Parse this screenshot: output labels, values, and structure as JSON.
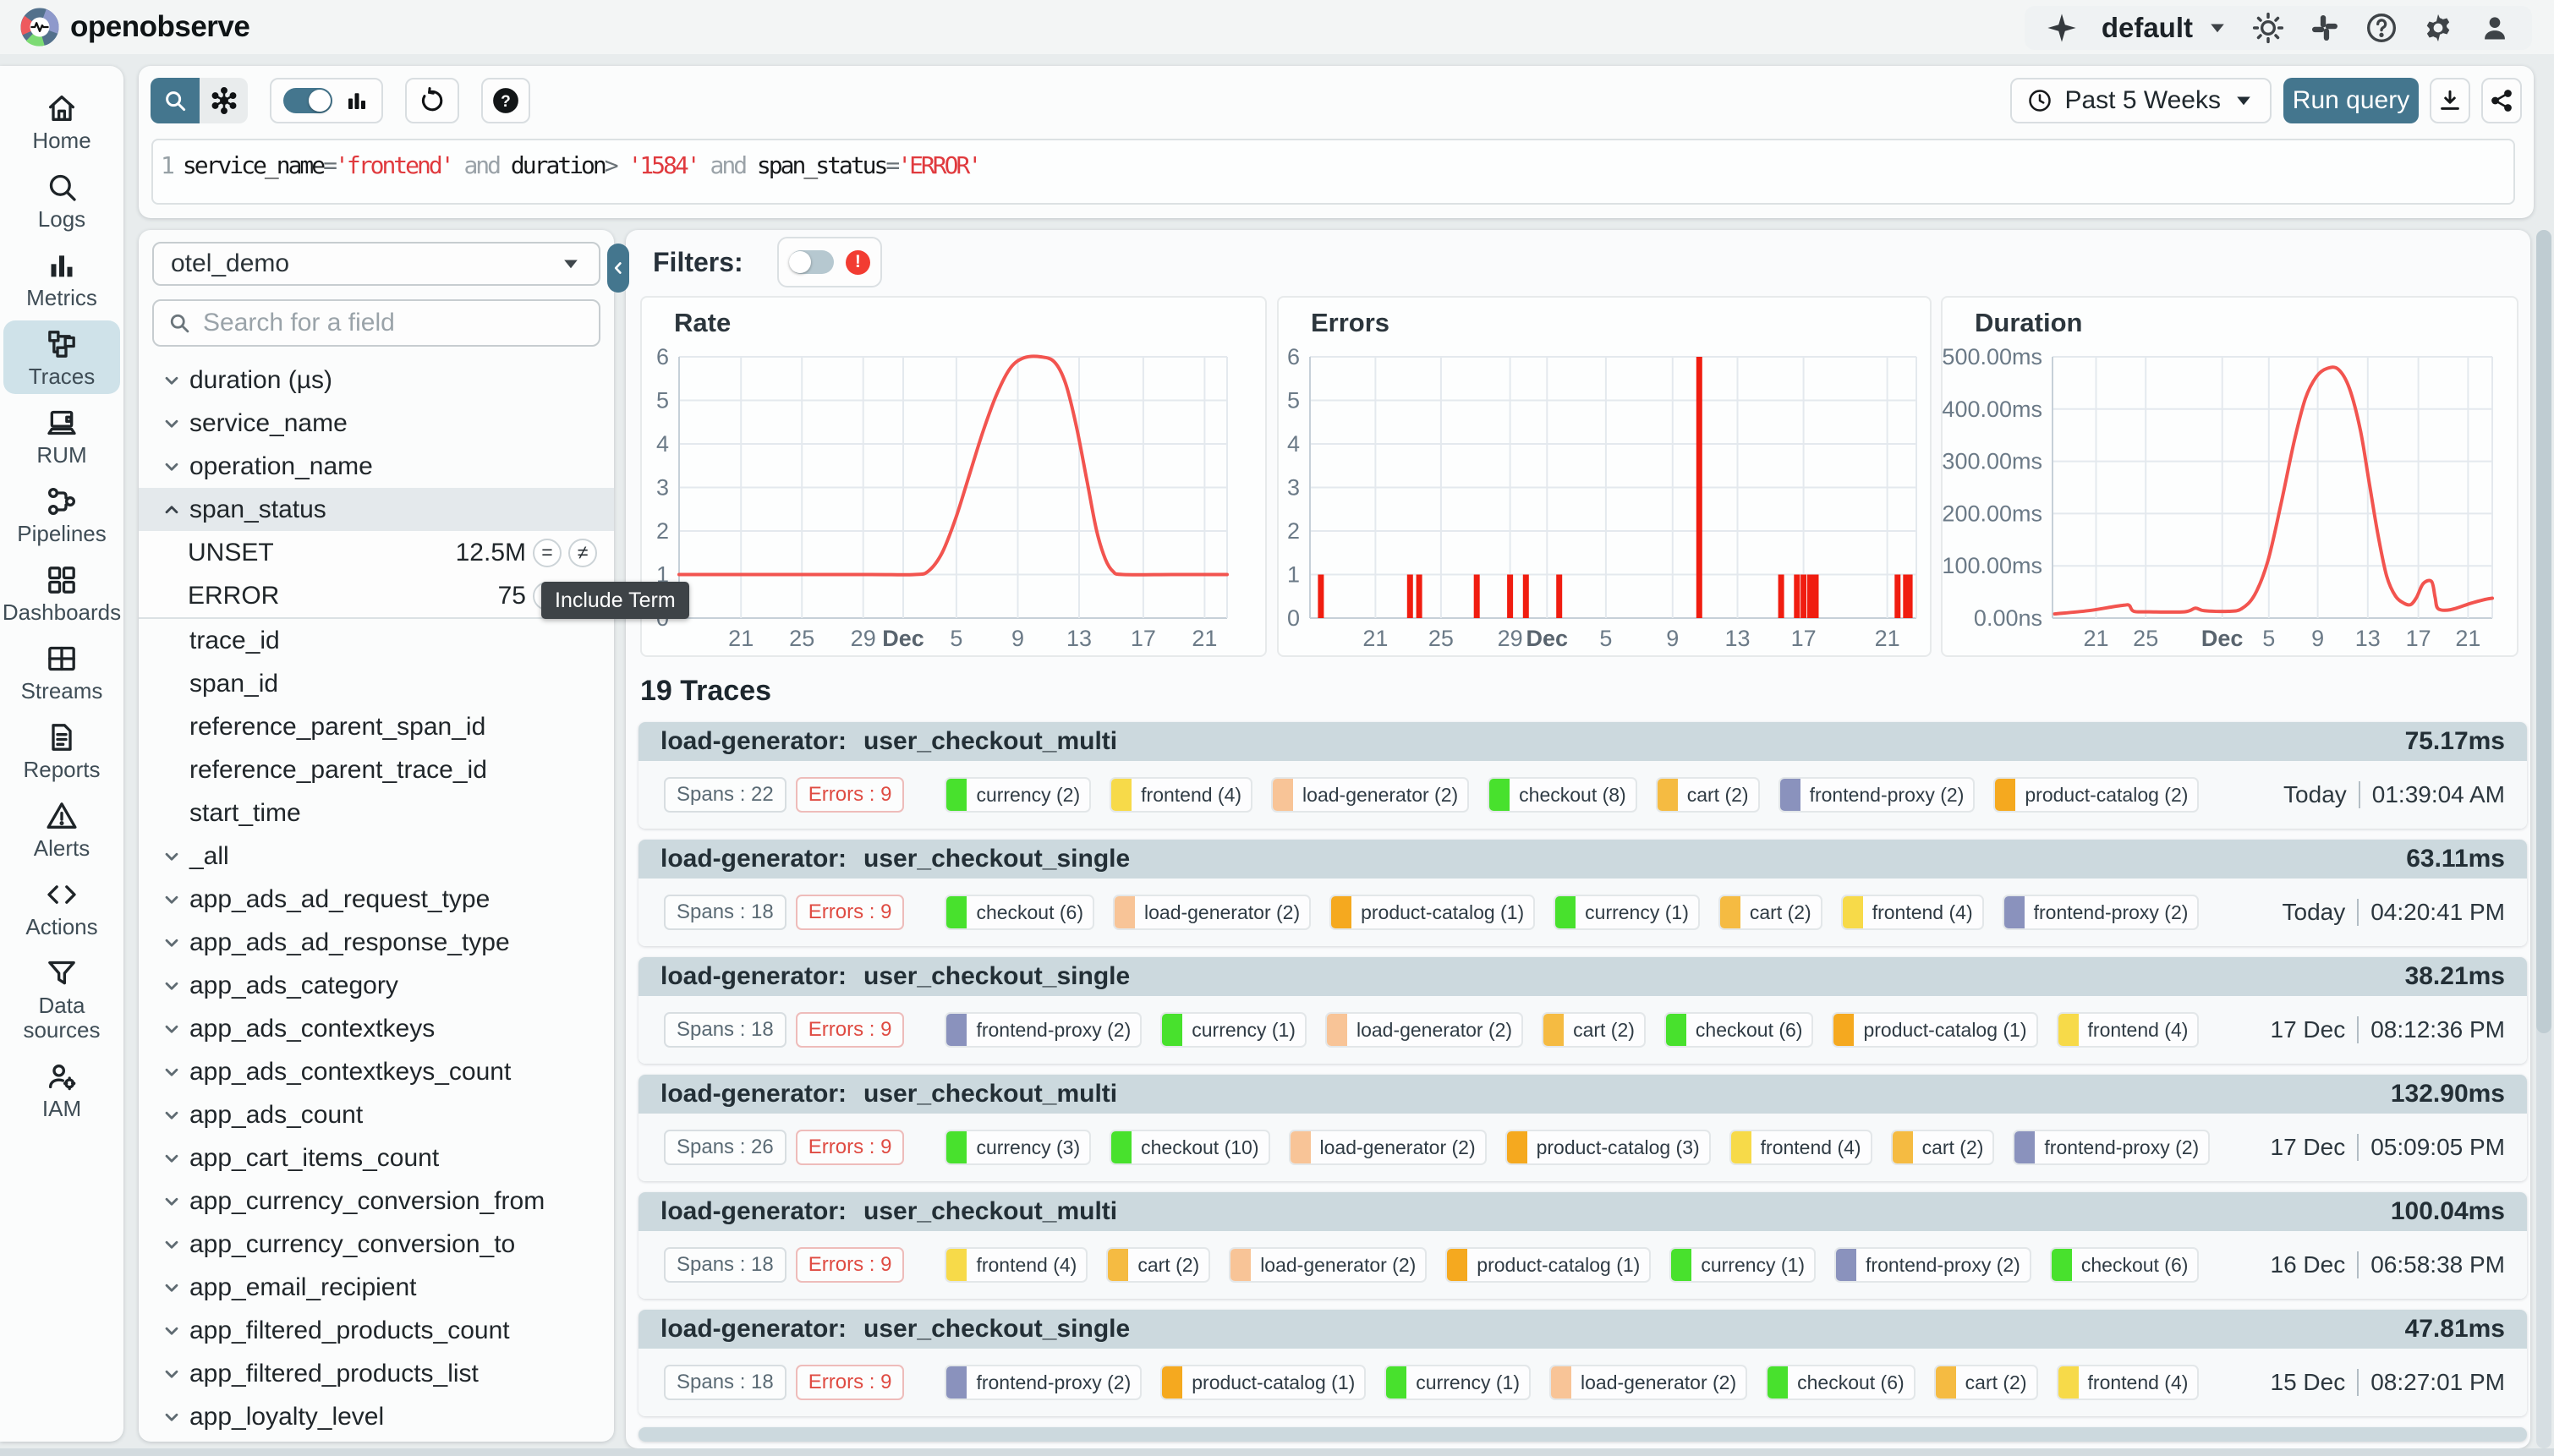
{
  "brand": {
    "name": "openobserve",
    "logo_icon": "openobserve-logo"
  },
  "header": {
    "org": "default",
    "icons": [
      "ai-sparkle-icon",
      "theme-sun-icon",
      "slack-icon",
      "help-icon",
      "settings-icon",
      "profile-icon"
    ]
  },
  "toolbar": {
    "time_range": "Past 5 Weeks",
    "run_label": "Run query",
    "mode_icons": [
      "search-icon",
      "service-graph-icon"
    ],
    "histogram_toggle_on": true,
    "action_icons": [
      "histogram-icon",
      "refresh-icon",
      "question-icon",
      "download-icon",
      "share-icon"
    ]
  },
  "query": {
    "line_number": "1",
    "segments": [
      {
        "text": "service_name",
        "type": "ident"
      },
      {
        "text": "=",
        "type": "op"
      },
      {
        "text": "'frontend'",
        "type": "str"
      },
      {
        "text": " and ",
        "type": "kw"
      },
      {
        "text": "duration",
        "type": "ident"
      },
      {
        "text": ">",
        "type": "op"
      },
      {
        "text": " '1584'",
        "type": "str"
      },
      {
        "text": " and ",
        "type": "kw"
      },
      {
        "text": "span_status",
        "type": "ident"
      },
      {
        "text": "=",
        "type": "op"
      },
      {
        "text": "'ERROR'",
        "type": "str"
      }
    ]
  },
  "nav": {
    "items": [
      {
        "label": "Home",
        "icon": "home-icon",
        "active": false
      },
      {
        "label": "Logs",
        "icon": "logs-icon",
        "active": false
      },
      {
        "label": "Metrics",
        "icon": "metrics-icon",
        "active": false
      },
      {
        "label": "Traces",
        "icon": "traces-icon",
        "active": true
      },
      {
        "label": "RUM",
        "icon": "rum-icon",
        "active": false
      },
      {
        "label": "Pipelines",
        "icon": "pipelines-icon",
        "active": false
      },
      {
        "label": "Dashboards",
        "icon": "dashboards-icon",
        "active": false
      },
      {
        "label": "Streams",
        "icon": "streams-icon",
        "active": false
      },
      {
        "label": "Reports",
        "icon": "reports-icon",
        "active": false
      },
      {
        "label": "Alerts",
        "icon": "alerts-icon",
        "active": false
      },
      {
        "label": "Actions",
        "icon": "actions-icon",
        "active": false
      },
      {
        "label": "Data sources",
        "icon": "data-sources-icon",
        "active": false
      },
      {
        "label": "IAM",
        "icon": "iam-icon",
        "active": false
      }
    ]
  },
  "fields": {
    "stream": "otel_demo",
    "search_placeholder": "Search for a field",
    "items": [
      {
        "label": "duration (µs)",
        "chevron": "down"
      },
      {
        "label": "service_name",
        "chevron": "down"
      },
      {
        "label": "operation_name",
        "chevron": "down"
      },
      {
        "label": "span_status",
        "chevron": "up",
        "selected": true,
        "expanded": true
      },
      {
        "label": "trace_id"
      },
      {
        "label": "span_id"
      },
      {
        "label": "reference_parent_span_id"
      },
      {
        "label": "reference_parent_trace_id"
      },
      {
        "label": "start_time"
      },
      {
        "label": "_all",
        "chevron": "down"
      },
      {
        "label": "app_ads_ad_request_type",
        "chevron": "down"
      },
      {
        "label": "app_ads_ad_response_type",
        "chevron": "down"
      },
      {
        "label": "app_ads_category",
        "chevron": "down"
      },
      {
        "label": "app_ads_contextkeys",
        "chevron": "down"
      },
      {
        "label": "app_ads_contextkeys_count",
        "chevron": "down"
      },
      {
        "label": "app_ads_count",
        "chevron": "down"
      },
      {
        "label": "app_cart_items_count",
        "chevron": "down"
      },
      {
        "label": "app_currency_conversion_from",
        "chevron": "down"
      },
      {
        "label": "app_currency_conversion_to",
        "chevron": "down"
      },
      {
        "label": "app_email_recipient",
        "chevron": "down"
      },
      {
        "label": "app_filtered_products_count",
        "chevron": "down"
      },
      {
        "label": "app_filtered_products_list",
        "chevron": "down"
      },
      {
        "label": "app_loyalty_level",
        "chevron": "down"
      }
    ],
    "span_status_values": [
      {
        "name": "UNSET",
        "count": "12.5M",
        "operators": [
          "=",
          "≠"
        ]
      },
      {
        "name": "ERROR",
        "count": "75",
        "operators": [
          "=",
          "≠"
        ]
      }
    ]
  },
  "tooltip": {
    "text": "Include Term"
  },
  "filters": {
    "label": "Filters:",
    "toggle_on": false,
    "error_icon": "error-icon"
  },
  "chart_data": [
    {
      "type": "line",
      "title": "Rate",
      "color": "#f2544f",
      "ylim": [
        0,
        6
      ],
      "y_ticks": [
        "0",
        "1",
        "2",
        "3",
        "4",
        "5",
        "6"
      ],
      "x_ticks": [
        {
          "label": "21",
          "f": 0.113
        },
        {
          "label": "25",
          "f": 0.224
        },
        {
          "label": "29",
          "f": 0.336
        },
        {
          "label": "Dec",
          "f": 0.409,
          "bold": true
        },
        {
          "label": "5",
          "f": 0.506
        },
        {
          "label": "9",
          "f": 0.618
        },
        {
          "label": "13",
          "f": 0.73
        },
        {
          "label": "17",
          "f": 0.847
        },
        {
          "label": "21",
          "f": 0.959
        }
      ],
      "points": [
        [
          0,
          1
        ],
        [
          0.2,
          1
        ],
        [
          0.35,
          1
        ],
        [
          0.43,
          1
        ],
        [
          0.455,
          1.08
        ],
        [
          0.48,
          1.5
        ],
        [
          0.505,
          2.3
        ],
        [
          0.53,
          3.3
        ],
        [
          0.555,
          4.3
        ],
        [
          0.58,
          5.15
        ],
        [
          0.605,
          5.75
        ],
        [
          0.63,
          5.98
        ],
        [
          0.66,
          6.0
        ],
        [
          0.685,
          5.88
        ],
        [
          0.705,
          5.4
        ],
        [
          0.725,
          4.4
        ],
        [
          0.745,
          3.1
        ],
        [
          0.762,
          2.0
        ],
        [
          0.778,
          1.35
        ],
        [
          0.792,
          1.07
        ],
        [
          0.81,
          1
        ],
        [
          0.9,
          1
        ],
        [
          1,
          1
        ]
      ]
    },
    {
      "type": "bar",
      "title": "Errors",
      "color": "#f01d10",
      "ylim": [
        0,
        6
      ],
      "y_ticks": [
        "0",
        "1",
        "2",
        "3",
        "4",
        "5",
        "6"
      ],
      "x_ticks": [
        {
          "label": "21",
          "f": 0.108
        },
        {
          "label": "25",
          "f": 0.216
        },
        {
          "label": "29",
          "f": 0.33
        },
        {
          "label": "Dec",
          "f": 0.391,
          "bold": true
        },
        {
          "label": "5",
          "f": 0.488
        },
        {
          "label": "9",
          "f": 0.598
        },
        {
          "label": "13",
          "f": 0.705
        },
        {
          "label": "17",
          "f": 0.814
        },
        {
          "label": "21",
          "f": 0.952
        }
      ],
      "bars": [
        [
          0.018,
          1
        ],
        [
          0.165,
          1
        ],
        [
          0.18,
          1
        ],
        [
          0.275,
          1
        ],
        [
          0.33,
          1
        ],
        [
          0.356,
          1
        ],
        [
          0.411,
          1
        ],
        [
          0.642,
          6
        ],
        [
          0.777,
          1
        ],
        [
          0.803,
          1
        ],
        [
          0.814,
          1
        ],
        [
          0.825,
          1
        ],
        [
          0.834,
          1
        ],
        [
          0.969,
          1
        ],
        [
          0.983,
          1
        ],
        [
          0.989,
          1
        ]
      ]
    },
    {
      "type": "line",
      "title": "Duration",
      "color": "#f2544f",
      "ylim": [
        0,
        500
      ],
      "y_ticks": [
        "0.00ns",
        "100.00ms",
        "200.00ms",
        "300.00ms",
        "400.00ms",
        "500.00ms"
      ],
      "x_ticks": [
        {
          "label": "21",
          "f": 0.099
        },
        {
          "label": "25",
          "f": 0.212
        },
        {
          "label": "Dec",
          "f": 0.386,
          "bold": true
        },
        {
          "label": "5",
          "f": 0.492
        },
        {
          "label": "9",
          "f": 0.603
        },
        {
          "label": "13",
          "f": 0.717
        },
        {
          "label": "17",
          "f": 0.832
        },
        {
          "label": "21",
          "f": 0.945
        }
      ],
      "points": [
        [
          0.005,
          8
        ],
        [
          0.08,
          14
        ],
        [
          0.14,
          22
        ],
        [
          0.165,
          25
        ],
        [
          0.175,
          24
        ],
        [
          0.185,
          13
        ],
        [
          0.22,
          12
        ],
        [
          0.3,
          12
        ],
        [
          0.325,
          19
        ],
        [
          0.345,
          14
        ],
        [
          0.4,
          13
        ],
        [
          0.43,
          18
        ],
        [
          0.46,
          45
        ],
        [
          0.49,
          110
        ],
        [
          0.52,
          220
        ],
        [
          0.55,
          340
        ],
        [
          0.575,
          420
        ],
        [
          0.6,
          462
        ],
        [
          0.625,
          478
        ],
        [
          0.65,
          476
        ],
        [
          0.675,
          440
        ],
        [
          0.7,
          360
        ],
        [
          0.72,
          260
        ],
        [
          0.74,
          160
        ],
        [
          0.76,
          80
        ],
        [
          0.78,
          42
        ],
        [
          0.8,
          28
        ],
        [
          0.815,
          26
        ],
        [
          0.828,
          40
        ],
        [
          0.843,
          66
        ],
        [
          0.862,
          70
        ],
        [
          0.87,
          40
        ],
        [
          0.877,
          18
        ],
        [
          0.905,
          16
        ],
        [
          0.95,
          28
        ],
        [
          0.98,
          35
        ],
        [
          1,
          38
        ]
      ]
    }
  ],
  "service_colors": {
    "currency": "#48e12d",
    "checkout": "#48e12d",
    "frontend": "#f7da49",
    "load-generator": "#f8c497",
    "cart": "#f5bb42",
    "frontend-proxy": "#8a92bd",
    "product-catalog": "#f5a91f"
  },
  "traces": {
    "heading": "19 Traces",
    "spans_label": "Spans :",
    "errors_label": "Errors :",
    "rows": [
      {
        "name": "load-generator:",
        "operation": "user_checkout_multi",
        "duration": "75.17ms",
        "spans": "22",
        "errors": "9",
        "date": "Today",
        "time": "01:39:04 AM",
        "services": [
          {
            "name": "currency",
            "count": "2"
          },
          {
            "name": "frontend",
            "count": "4"
          },
          {
            "name": "load-generator",
            "count": "2"
          },
          {
            "name": "checkout",
            "count": "8"
          },
          {
            "name": "cart",
            "count": "2"
          },
          {
            "name": "frontend-proxy",
            "count": "2"
          },
          {
            "name": "product-catalog",
            "count": "2"
          }
        ]
      },
      {
        "name": "load-generator:",
        "operation": "user_checkout_single",
        "duration": "63.11ms",
        "spans": "18",
        "errors": "9",
        "date": "Today",
        "time": "04:20:41 PM",
        "services": [
          {
            "name": "checkout",
            "count": "6"
          },
          {
            "name": "load-generator",
            "count": "2"
          },
          {
            "name": "product-catalog",
            "count": "1"
          },
          {
            "name": "currency",
            "count": "1"
          },
          {
            "name": "cart",
            "count": "2"
          },
          {
            "name": "frontend",
            "count": "4"
          },
          {
            "name": "frontend-proxy",
            "count": "2"
          }
        ]
      },
      {
        "name": "load-generator:",
        "operation": "user_checkout_single",
        "duration": "38.21ms",
        "spans": "18",
        "errors": "9",
        "date": "17 Dec",
        "time": "08:12:36 PM",
        "services": [
          {
            "name": "frontend-proxy",
            "count": "2"
          },
          {
            "name": "currency",
            "count": "1"
          },
          {
            "name": "load-generator",
            "count": "2"
          },
          {
            "name": "cart",
            "count": "2"
          },
          {
            "name": "checkout",
            "count": "6"
          },
          {
            "name": "product-catalog",
            "count": "1"
          },
          {
            "name": "frontend",
            "count": "4"
          }
        ]
      },
      {
        "name": "load-generator:",
        "operation": "user_checkout_multi",
        "duration": "132.90ms",
        "spans": "26",
        "errors": "9",
        "date": "17 Dec",
        "time": "05:09:05 PM",
        "services": [
          {
            "name": "currency",
            "count": "3"
          },
          {
            "name": "checkout",
            "count": "10"
          },
          {
            "name": "load-generator",
            "count": "2"
          },
          {
            "name": "product-catalog",
            "count": "3"
          },
          {
            "name": "frontend",
            "count": "4"
          },
          {
            "name": "cart",
            "count": "2"
          },
          {
            "name": "frontend-proxy",
            "count": "2"
          }
        ]
      },
      {
        "name": "load-generator:",
        "operation": "user_checkout_multi",
        "duration": "100.04ms",
        "spans": "18",
        "errors": "9",
        "date": "16 Dec",
        "time": "06:58:38 PM",
        "services": [
          {
            "name": "frontend",
            "count": "4"
          },
          {
            "name": "cart",
            "count": "2"
          },
          {
            "name": "load-generator",
            "count": "2"
          },
          {
            "name": "product-catalog",
            "count": "1"
          },
          {
            "name": "currency",
            "count": "1"
          },
          {
            "name": "frontend-proxy",
            "count": "2"
          },
          {
            "name": "checkout",
            "count": "6"
          }
        ]
      },
      {
        "name": "load-generator:",
        "operation": "user_checkout_single",
        "duration": "47.81ms",
        "spans": "18",
        "errors": "9",
        "date": "15 Dec",
        "time": "08:27:01 PM",
        "services": [
          {
            "name": "frontend-proxy",
            "count": "2"
          },
          {
            "name": "product-catalog",
            "count": "1"
          },
          {
            "name": "currency",
            "count": "1"
          },
          {
            "name": "load-generator",
            "count": "2"
          },
          {
            "name": "checkout",
            "count": "6"
          },
          {
            "name": "cart",
            "count": "2"
          },
          {
            "name": "frontend",
            "count": "4"
          }
        ]
      }
    ],
    "has_partial_row": true
  }
}
